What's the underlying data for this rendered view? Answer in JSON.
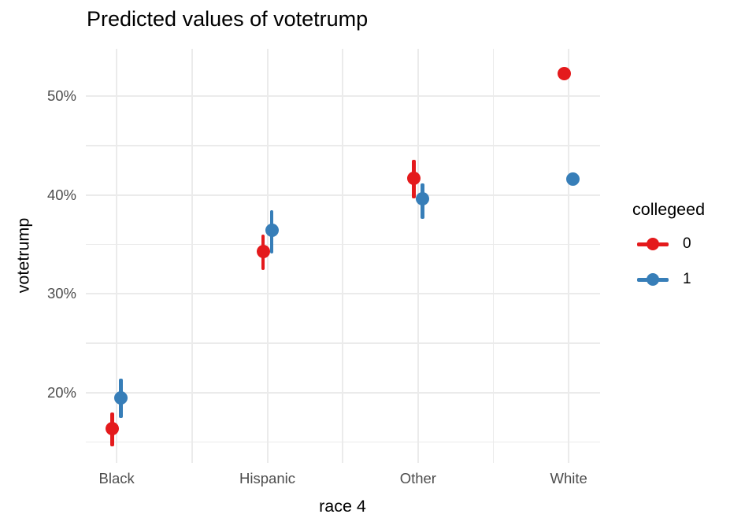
{
  "title": "Predicted values of votetrump",
  "axes": {
    "x_title": "race 4",
    "y_title": "votetrump",
    "y_tick_labels": [
      "20%",
      "30%",
      "40%",
      "50%"
    ],
    "x_tick_labels": [
      "Black",
      "Hispanic",
      "Other",
      "White"
    ]
  },
  "legend": {
    "title": "collegeed",
    "items": [
      {
        "label": "0",
        "color": "#E41A1C"
      },
      {
        "label": "1",
        "color": "#377EB8"
      }
    ]
  },
  "colors": {
    "background": "#FFFFFF",
    "gridline": "#EBEBEB",
    "axis_text": "#4D4D4D",
    "title_text": "#000000",
    "series_0": "#E41A1C",
    "series_1": "#377EB8"
  },
  "chart_data": {
    "type": "pointrange-scatter",
    "title": "Predicted values of votetrump",
    "xlabel": "race 4",
    "ylabel": "votetrump",
    "categories": [
      "Black",
      "Hispanic",
      "Other",
      "White"
    ],
    "series": [
      {
        "name": "0",
        "color": "#E41A1C",
        "values": [
          16.4,
          34.3,
          41.7,
          52.3
        ],
        "ci_low": [
          14.6,
          32.4,
          39.7,
          52.0
        ],
        "ci_high": [
          18.0,
          36.0,
          43.6,
          52.6
        ]
      },
      {
        "name": "1",
        "color": "#377EB8",
        "values": [
          19.5,
          36.4,
          39.6,
          41.6
        ],
        "ci_low": [
          17.4,
          34.1,
          37.6,
          41.2
        ],
        "ci_high": [
          21.4,
          38.5,
          41.2,
          42.0
        ]
      }
    ],
    "unit": "percent",
    "ylim": [
      12.9,
      54.8
    ],
    "y_major_ticks": [
      20,
      30,
      40,
      50
    ],
    "y_minor_ticks": [
      15,
      25,
      35,
      45
    ],
    "grid": true,
    "legend_title": "collegeed",
    "legend_position": "right"
  }
}
